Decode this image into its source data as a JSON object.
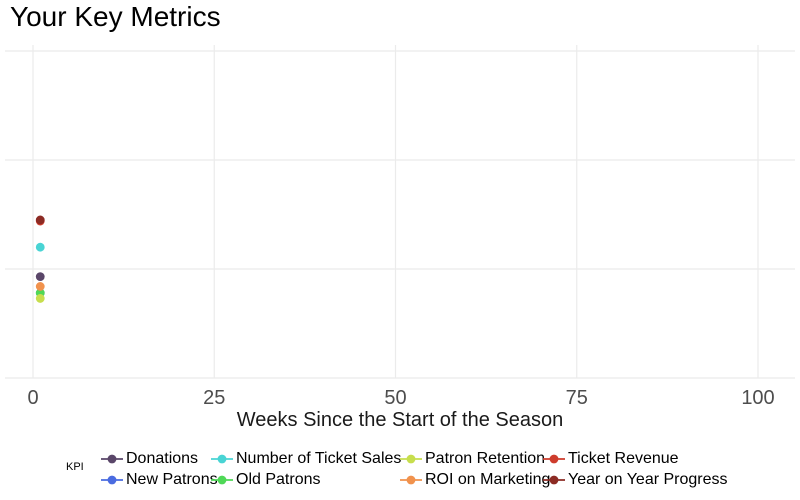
{
  "chart": {
    "title": "Your Key Metrics",
    "x_axis_title": "Weeks Since the Start of the Season",
    "legend_title": "KPI"
  },
  "chart_data": {
    "type": "scatter",
    "title": "Your Key Metrics",
    "xlabel": "Weeks Since the Start of the Season",
    "ylabel": "",
    "x_ticks": [
      0,
      25,
      50,
      75,
      100
    ],
    "xlim": [
      -4,
      105
    ],
    "y_tick_labels_visible": false,
    "y_gridline_units": [
      0,
      1,
      2,
      3
    ],
    "ylim": [
      0,
      3.06
    ],
    "grid": true,
    "legend_title": "KPI",
    "legend_position": "bottom",
    "series": [
      {
        "name": "Donations",
        "color": "#5a4669",
        "x": [
          1
        ],
        "y": [
          0.93
        ]
      },
      {
        "name": "New Patrons",
        "color": "#4a6be0",
        "x": [
          1
        ],
        "y": [
          0.78
        ]
      },
      {
        "name": "Number of Ticket Sales",
        "color": "#49d4d4",
        "x": [
          1
        ],
        "y": [
          1.2
        ]
      },
      {
        "name": "Old Patrons",
        "color": "#4fd857",
        "x": [
          1
        ],
        "y": [
          0.78
        ]
      },
      {
        "name": "Patron Retention",
        "color": "#c7de4d",
        "x": [
          1
        ],
        "y": [
          0.73
        ]
      },
      {
        "name": "ROI on Marketing",
        "color": "#f1924d",
        "x": [
          1
        ],
        "y": [
          0.84
        ]
      },
      {
        "name": "Ticket Revenue",
        "color": "#ce3c2c",
        "x": [
          1
        ],
        "y": [
          1.44
        ]
      },
      {
        "name": "Year on Year Progress",
        "color": "#8c2b24",
        "x": [
          1
        ],
        "y": [
          1.45
        ]
      }
    ],
    "colors": {
      "gridline": "#ebebeb",
      "tick_label": "#4d4d4d",
      "axis_title": "#1a1a1a",
      "title": "#000000"
    }
  }
}
